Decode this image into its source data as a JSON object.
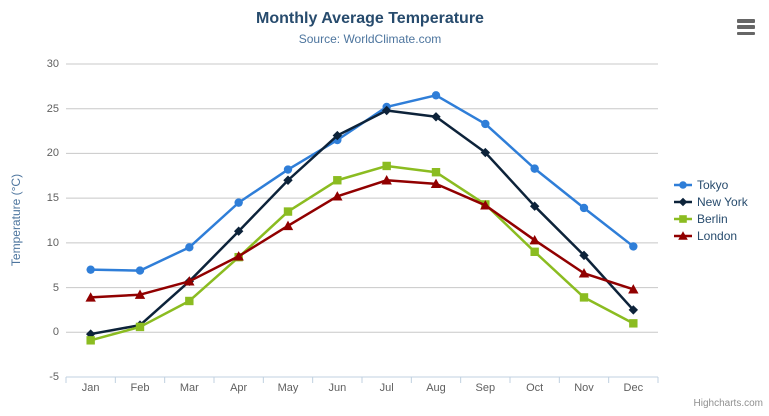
{
  "credits": "Highcharts.com",
  "colors": {
    "grid": "#C8C8C8",
    "axis_line": "#C0D0E0",
    "tick": "#C0D0E0",
    "title": "#274b6d",
    "subtitle": "#4d759e",
    "axis_labels": "#606060",
    "legend_text": "#274b6d"
  },
  "export_menu_icon": "hamburger-icon",
  "chart_data": {
    "type": "line",
    "title": "Monthly Average Temperature",
    "subtitle": "Source: WorldClimate.com",
    "categories": [
      "Jan",
      "Feb",
      "Mar",
      "Apr",
      "May",
      "Jun",
      "Jul",
      "Aug",
      "Sep",
      "Oct",
      "Nov",
      "Dec"
    ],
    "series": [
      {
        "name": "Tokyo",
        "color": "#2f7ed8",
        "symbol": "circle",
        "values": [
          7.0,
          6.9,
          9.5,
          14.5,
          18.2,
          21.5,
          25.2,
          26.5,
          23.3,
          18.3,
          13.9,
          9.6
        ]
      },
      {
        "name": "New York",
        "color": "#0d233a",
        "symbol": "diamond",
        "values": [
          -0.2,
          0.8,
          5.7,
          11.3,
          17.0,
          22.0,
          24.8,
          24.1,
          20.1,
          14.1,
          8.6,
          2.5
        ]
      },
      {
        "name": "Berlin",
        "color": "#8bbc21",
        "symbol": "square",
        "values": [
          -0.9,
          0.6,
          3.5,
          8.4,
          13.5,
          17.0,
          18.6,
          17.9,
          14.3,
          9.0,
          3.9,
          1.0
        ]
      },
      {
        "name": "London",
        "color": "#910000",
        "symbol": "triangle",
        "values": [
          3.9,
          4.2,
          5.7,
          8.5,
          11.9,
          15.2,
          17.0,
          16.6,
          14.2,
          10.3,
          6.6,
          4.8
        ]
      }
    ],
    "xlabel": "",
    "ylabel": "Temperature (°C)",
    "ylim": [
      -5,
      30
    ],
    "y_ticks": [
      -5,
      0,
      5,
      10,
      15,
      20,
      25,
      30
    ],
    "grid": true,
    "legend_position": "right"
  }
}
